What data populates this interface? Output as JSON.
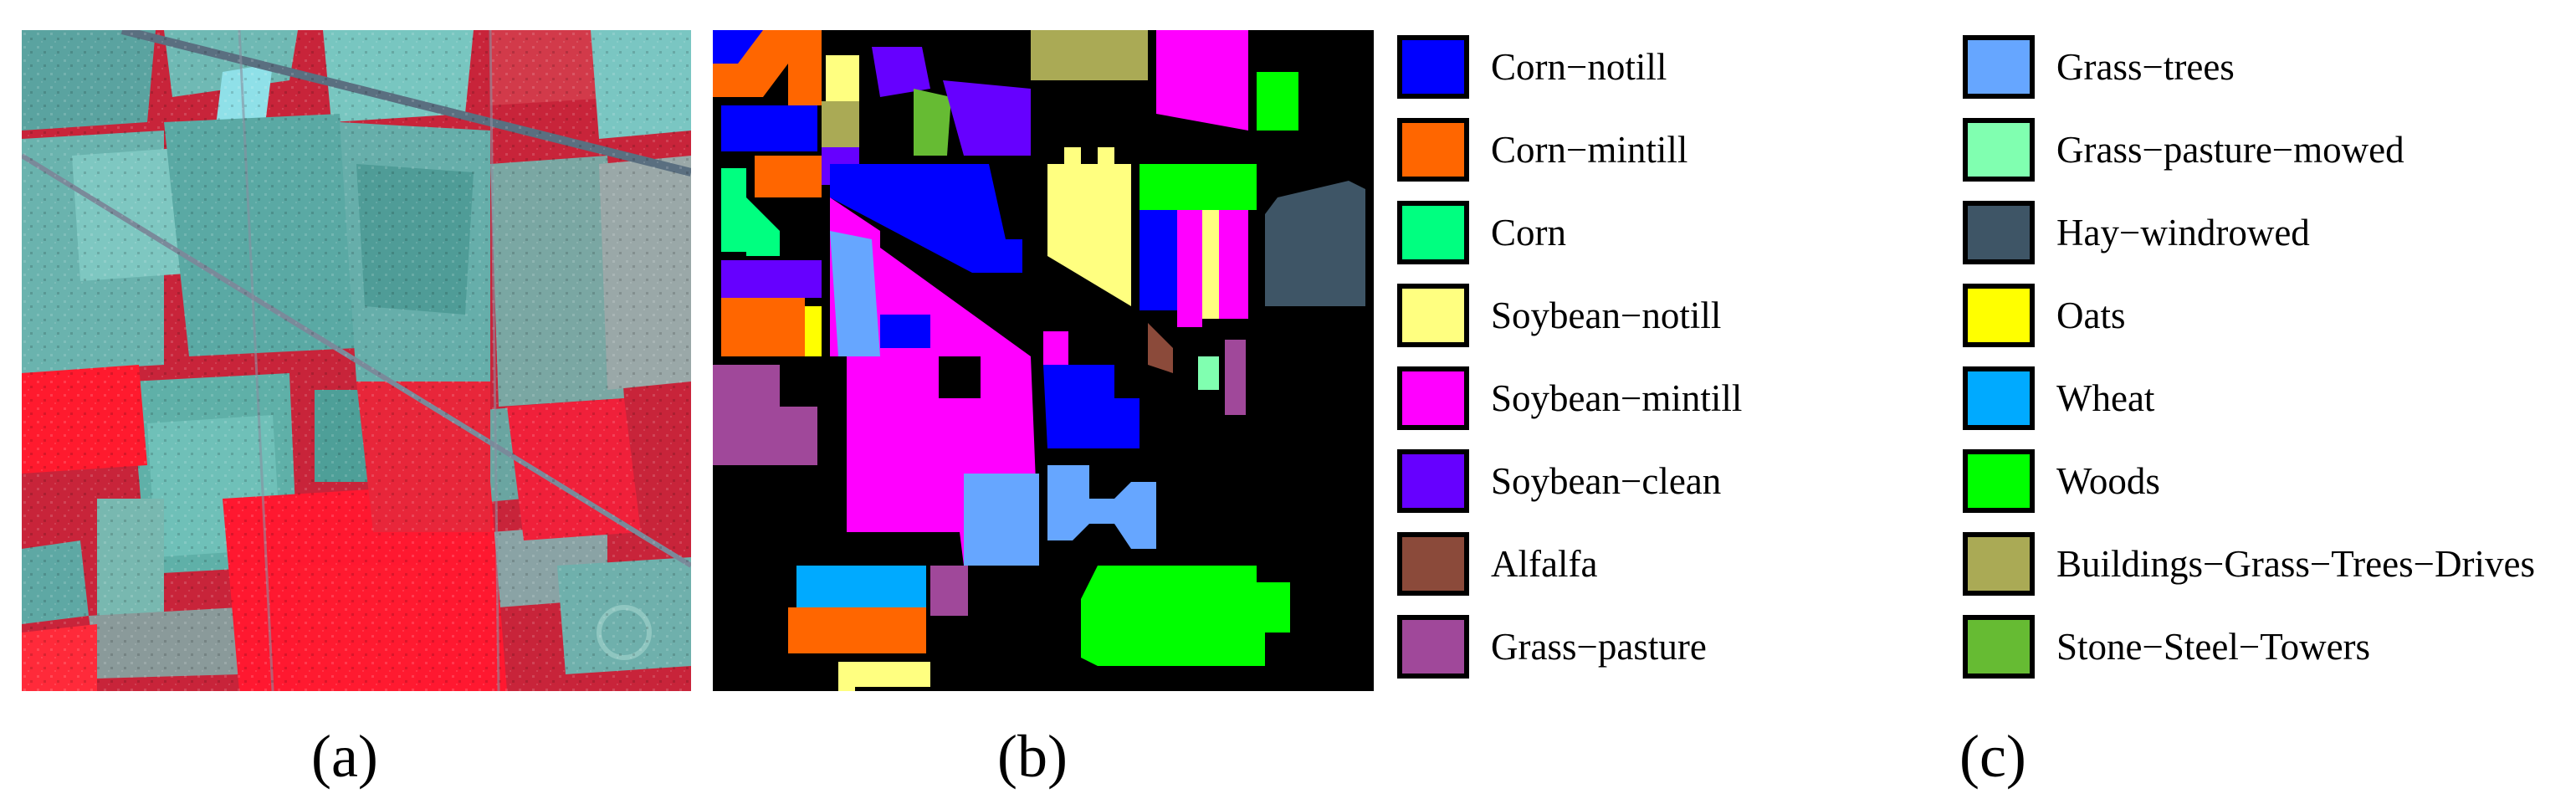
{
  "captions": {
    "a": "(a)",
    "b": "(b)",
    "c": "(c)"
  },
  "legend": {
    "col1": [
      {
        "label": "Corn−notill",
        "color": "#0000ff"
      },
      {
        "label": "Corn−mintill",
        "color": "#ff6600"
      },
      {
        "label": "Corn",
        "color": "#00ff80"
      },
      {
        "label": "Soybean−notill",
        "color": "#ffff80"
      },
      {
        "label": "Soybean−mintill",
        "color": "#ff00ff"
      },
      {
        "label": "Soybean−clean",
        "color": "#6600ff"
      },
      {
        "label": "Alfalfa",
        "color": "#8b4a3a"
      },
      {
        "label": "Grass−pasture",
        "color": "#a0489a"
      }
    ],
    "col2": [
      {
        "label": "Grass−trees",
        "color": "#66a6ff"
      },
      {
        "label": "Grass−pasture−mowed",
        "color": "#80ffb0"
      },
      {
        "label": "Hay−windrowed",
        "color": "#3e5566"
      },
      {
        "label": "Oats",
        "color": "#ffff00"
      },
      {
        "label": "Wheat",
        "color": "#00aaff"
      },
      {
        "label": "Woods",
        "color": "#00ff00"
      },
      {
        "label": "Buildings−Grass−Trees−Drives",
        "color": "#aaaa55"
      },
      {
        "label": "Stone−Steel−Towers",
        "color": "#66bb33"
      }
    ]
  }
}
